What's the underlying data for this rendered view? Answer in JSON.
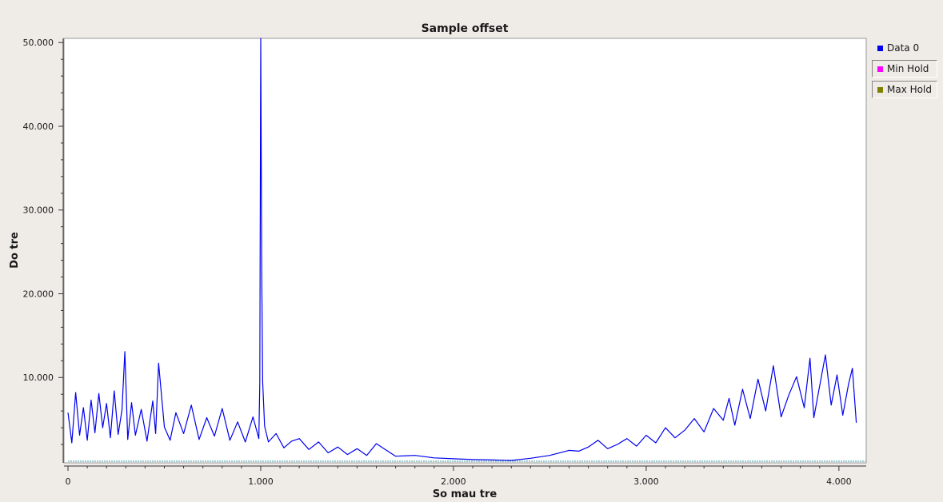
{
  "chart_data": {
    "type": "line",
    "title": "Sample offset",
    "xlabel": "So mau tre",
    "ylabel": "Do tre",
    "xlim": [
      0,
      4096
    ],
    "ylim": [
      0,
      50500
    ],
    "x_ticks": [
      {
        "value": 0,
        "label": "0"
      },
      {
        "value": 1000,
        "label": "1.000"
      },
      {
        "value": 2000,
        "label": "2.000"
      },
      {
        "value": 3000,
        "label": "3.000"
      },
      {
        "value": 4000,
        "label": "4.000"
      }
    ],
    "y_ticks": [
      {
        "value": 10000,
        "label": "10.000"
      },
      {
        "value": 20000,
        "label": "20.000"
      },
      {
        "value": 30000,
        "label": "30.000"
      },
      {
        "value": 40000,
        "label": "40.000"
      },
      {
        "value": 50000,
        "label": "50.000"
      }
    ],
    "grid": false,
    "legend_placement": "right",
    "series": [
      {
        "name": "Data 0",
        "color": "#0000ee",
        "x": [
          0,
          20,
          40,
          60,
          80,
          100,
          120,
          140,
          160,
          180,
          200,
          220,
          240,
          260,
          280,
          295,
          310,
          330,
          350,
          380,
          410,
          440,
          455,
          470,
          500,
          530,
          560,
          600,
          640,
          680,
          720,
          760,
          800,
          840,
          880,
          920,
          960,
          990,
          995,
          1000,
          1005,
          1010,
          1020,
          1040,
          1080,
          1120,
          1160,
          1200,
          1250,
          1300,
          1350,
          1400,
          1450,
          1500,
          1550,
          1600,
          1700,
          1800,
          1900,
          2000,
          2100,
          2200,
          2300,
          2400,
          2500,
          2600,
          2650,
          2700,
          2750,
          2800,
          2850,
          2900,
          2950,
          3000,
          3050,
          3100,
          3150,
          3200,
          3250,
          3300,
          3350,
          3400,
          3430,
          3460,
          3500,
          3540,
          3580,
          3620,
          3660,
          3700,
          3740,
          3780,
          3820,
          3850,
          3870,
          3900,
          3930,
          3960,
          3990,
          4020,
          4050,
          4070,
          4090
        ],
        "values": [
          5800,
          2200,
          8200,
          3100,
          6400,
          2500,
          7300,
          3400,
          8100,
          4000,
          6900,
          2800,
          8400,
          3200,
          6100,
          13100,
          2600,
          7000,
          3100,
          6200,
          2400,
          7200,
          3300,
          11700,
          4100,
          2500,
          5800,
          3300,
          6700,
          2600,
          5200,
          3000,
          6300,
          2500,
          4700,
          2300,
          5300,
          2700,
          9300,
          50500,
          23000,
          9500,
          4200,
          2300,
          3300,
          1600,
          2400,
          2700,
          1400,
          2300,
          1000,
          1700,
          800,
          1500,
          700,
          2100,
          600,
          700,
          400,
          300,
          200,
          150,
          100,
          350,
          700,
          1300,
          1200,
          1700,
          2500,
          1500,
          2000,
          2700,
          1800,
          3100,
          2200,
          4000,
          2800,
          3700,
          5100,
          3500,
          6300,
          4900,
          7500,
          4300,
          8600,
          5100,
          9800,
          6000,
          11400,
          5300,
          7900,
          10100,
          6400,
          12300,
          5200,
          9000,
          12700,
          6700,
          10300,
          5500,
          9200,
          11100,
          4600
        ]
      },
      {
        "name": "Min Hold",
        "color": "#ff00ff",
        "values": []
      },
      {
        "name": "Max Hold",
        "color": "#808000",
        "values": []
      }
    ],
    "baseline": {
      "value": 0,
      "color": "#3a9aa0"
    }
  }
}
